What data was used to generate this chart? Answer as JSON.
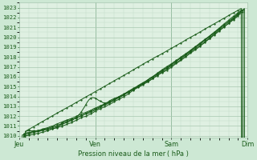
{
  "xlabel": "Pression niveau de la mer ( hPa )",
  "ylim": [
    1009.8,
    1023.5
  ],
  "yticks": [
    1010,
    1011,
    1012,
    1013,
    1014,
    1015,
    1016,
    1017,
    1018,
    1019,
    1020,
    1021,
    1022,
    1023
  ],
  "xtick_labels": [
    "Jeu",
    "Ven",
    "Sam",
    "Dim"
  ],
  "bg_outer": "#cde8d4",
  "bg_plot": "#dff0e2",
  "grid_major_color": "#a8c8b0",
  "grid_minor_color": "#c0dcc8",
  "line_color": "#1a5c1a",
  "text_color": "#1a5c1a",
  "tick_color": "#1a5c1a"
}
